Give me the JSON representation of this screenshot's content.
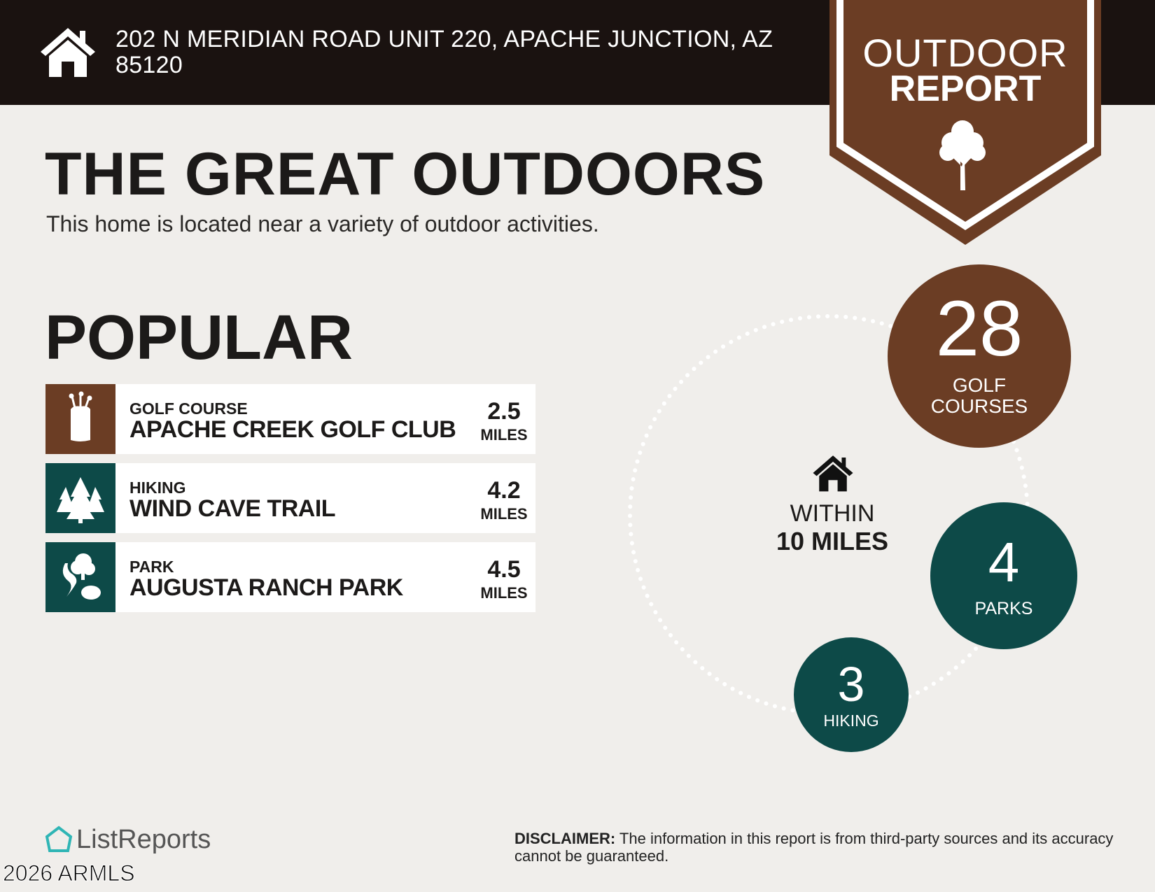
{
  "header": {
    "address": "202 N MERIDIAN ROAD UNIT 220, APACHE JUNCTION, AZ 85120",
    "icon": "house-icon"
  },
  "badge": {
    "line1": "OUTDOOR",
    "line2": "REPORT",
    "icon": "tree-icon"
  },
  "title": "THE GREAT OUTDOORS",
  "subtitle": "This home is located near a variety of outdoor activities.",
  "popular": {
    "heading": "POPULAR",
    "items": [
      {
        "category": "GOLF COURSE",
        "name": "APACHE CREEK GOLF CLUB",
        "distance": "2.5",
        "unit": "MILES",
        "icon": "golf-bag-icon",
        "color": "#6b3d24"
      },
      {
        "category": "HIKING",
        "name": "WIND CAVE TRAIL",
        "distance": "4.2",
        "unit": "MILES",
        "icon": "pine-trees-icon",
        "color": "#0d4a48"
      },
      {
        "category": "PARK",
        "name": "AUGUSTA RANCH PARK",
        "distance": "4.5",
        "unit": "MILES",
        "icon": "park-icon",
        "color": "#0d4a48"
      }
    ]
  },
  "radius": {
    "line1": "WITHIN",
    "line2": "10 MILES",
    "icon": "house-icon"
  },
  "stats": [
    {
      "count": "28",
      "label1": "GOLF",
      "label2": "COURSES",
      "color": "#6b3d24"
    },
    {
      "count": "4",
      "label1": "PARKS",
      "color": "#0d4a48"
    },
    {
      "count": "3",
      "label1": "HIKING",
      "color": "#0d4a48"
    }
  ],
  "footer": {
    "logo": "ListReports",
    "watermark": "2026 ARMLS",
    "disclaimer_label": "DISCLAIMER:",
    "disclaimer": " The information in this report is from third-party sources and its accuracy cannot be guaranteed."
  },
  "colors": {
    "brown": "#6b3d24",
    "teal": "#0d4a48",
    "dark": "#1a1210",
    "background": "#f0eeeb",
    "logo_accent": "#2fb5b5"
  }
}
